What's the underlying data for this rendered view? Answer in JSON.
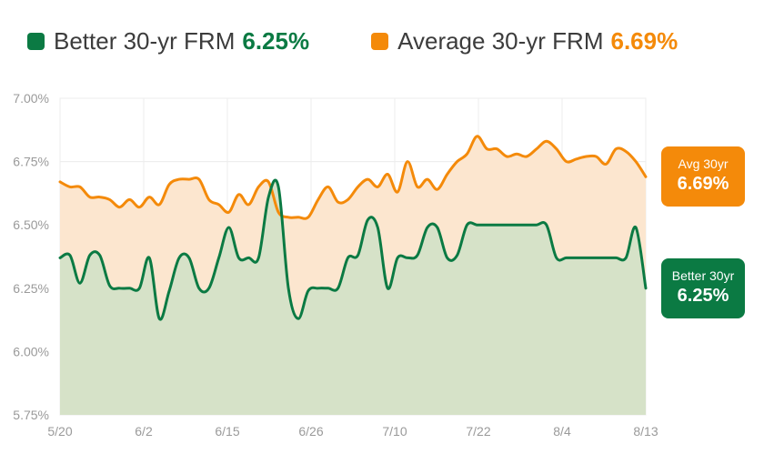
{
  "legend": {
    "better": {
      "label": "Better 30-yr FRM",
      "value": "6.25%",
      "color": "#0b7a43",
      "icon": "green-square-icon"
    },
    "average": {
      "label": "Average 30-yr FRM",
      "value": "6.69%",
      "color": "#f48a0a",
      "icon": "orange-square-icon"
    }
  },
  "badges": {
    "average": {
      "label": "Avg 30yr",
      "value": "6.69%",
      "color": "#f48a0a"
    },
    "better": {
      "label": "Better 30yr",
      "value": "6.25%",
      "color": "#0b7a43"
    }
  },
  "chart_data": {
    "type": "area",
    "title": "",
    "xlabel": "",
    "ylabel": "",
    "ylim": [
      5.75,
      7.0
    ],
    "y_ticks": [
      "7.00%",
      "6.75%",
      "6.50%",
      "6.25%",
      "6.00%",
      "5.75%"
    ],
    "y_tick_values": [
      7.0,
      6.75,
      6.5,
      6.25,
      6.0,
      5.75
    ],
    "x_ticks": [
      "5/20",
      "6/2",
      "6/15",
      "6/26",
      "7/10",
      "7/22",
      "8/4",
      "8/13"
    ],
    "grid": true,
    "legend_position": "top",
    "series": [
      {
        "name": "Average 30-yr FRM",
        "color": "#f48a0a",
        "fill": "#fce6cf",
        "points": [
          [
            0,
            6.67
          ],
          [
            1,
            6.65
          ],
          [
            2,
            6.65
          ],
          [
            3,
            6.61
          ],
          [
            4,
            6.61
          ],
          [
            5,
            6.6
          ],
          [
            6,
            6.57
          ],
          [
            7,
            6.6
          ],
          [
            8,
            6.57
          ],
          [
            9,
            6.61
          ],
          [
            10,
            6.58
          ],
          [
            11,
            6.66
          ],
          [
            12,
            6.68
          ],
          [
            13,
            6.68
          ],
          [
            14,
            6.68
          ],
          [
            15,
            6.6
          ],
          [
            16,
            6.58
          ],
          [
            17,
            6.55
          ],
          [
            18,
            6.62
          ],
          [
            19,
            6.58
          ],
          [
            20,
            6.65
          ],
          [
            21,
            6.67
          ],
          [
            22,
            6.55
          ],
          [
            23,
            6.53
          ],
          [
            24,
            6.53
          ],
          [
            25,
            6.53
          ],
          [
            26,
            6.6
          ],
          [
            27,
            6.65
          ],
          [
            28,
            6.59
          ],
          [
            29,
            6.6
          ],
          [
            30,
            6.65
          ],
          [
            31,
            6.68
          ],
          [
            32,
            6.65
          ],
          [
            33,
            6.7
          ],
          [
            34,
            6.63
          ],
          [
            35,
            6.75
          ],
          [
            36,
            6.65
          ],
          [
            37,
            6.68
          ],
          [
            38,
            6.64
          ],
          [
            39,
            6.7
          ],
          [
            40,
            6.75
          ],
          [
            41,
            6.78
          ],
          [
            42,
            6.85
          ],
          [
            43,
            6.8
          ],
          [
            44,
            6.8
          ],
          [
            45,
            6.77
          ],
          [
            46,
            6.78
          ],
          [
            47,
            6.77
          ],
          [
            48,
            6.8
          ],
          [
            49,
            6.83
          ],
          [
            50,
            6.8
          ],
          [
            51,
            6.75
          ],
          [
            52,
            6.76
          ],
          [
            53,
            6.77
          ],
          [
            54,
            6.77
          ],
          [
            55,
            6.74
          ],
          [
            56,
            6.8
          ],
          [
            57,
            6.79
          ],
          [
            58,
            6.75
          ],
          [
            59,
            6.69
          ]
        ]
      },
      {
        "name": "Better 30-yr FRM",
        "color": "#0b7a43",
        "fill": "#d6e2c8",
        "points": [
          [
            0,
            6.37
          ],
          [
            1,
            6.38
          ],
          [
            2,
            6.27
          ],
          [
            3,
            6.38
          ],
          [
            4,
            6.38
          ],
          [
            5,
            6.26
          ],
          [
            6,
            6.25
          ],
          [
            7,
            6.25
          ],
          [
            8,
            6.25
          ],
          [
            9,
            6.37
          ],
          [
            10,
            6.13
          ],
          [
            11,
            6.24
          ],
          [
            12,
            6.37
          ],
          [
            13,
            6.37
          ],
          [
            14,
            6.25
          ],
          [
            15,
            6.25
          ],
          [
            16,
            6.37
          ],
          [
            17,
            6.49
          ],
          [
            18,
            6.37
          ],
          [
            19,
            6.37
          ],
          [
            20,
            6.37
          ],
          [
            21,
            6.61
          ],
          [
            22,
            6.65
          ],
          [
            23,
            6.25
          ],
          [
            24,
            6.13
          ],
          [
            25,
            6.24
          ],
          [
            26,
            6.25
          ],
          [
            27,
            6.25
          ],
          [
            28,
            6.25
          ],
          [
            29,
            6.37
          ],
          [
            30,
            6.38
          ],
          [
            31,
            6.52
          ],
          [
            32,
            6.49
          ],
          [
            33,
            6.25
          ],
          [
            34,
            6.37
          ],
          [
            35,
            6.37
          ],
          [
            36,
            6.38
          ],
          [
            37,
            6.49
          ],
          [
            38,
            6.49
          ],
          [
            39,
            6.37
          ],
          [
            40,
            6.38
          ],
          [
            41,
            6.5
          ],
          [
            42,
            6.5
          ],
          [
            43,
            6.5
          ],
          [
            44,
            6.5
          ],
          [
            45,
            6.5
          ],
          [
            46,
            6.5
          ],
          [
            47,
            6.5
          ],
          [
            48,
            6.5
          ],
          [
            49,
            6.5
          ],
          [
            50,
            6.37
          ],
          [
            51,
            6.37
          ],
          [
            52,
            6.37
          ],
          [
            53,
            6.37
          ],
          [
            54,
            6.37
          ],
          [
            55,
            6.37
          ],
          [
            56,
            6.37
          ],
          [
            57,
            6.37
          ],
          [
            58,
            6.49
          ],
          [
            59,
            6.25
          ]
        ]
      }
    ]
  }
}
